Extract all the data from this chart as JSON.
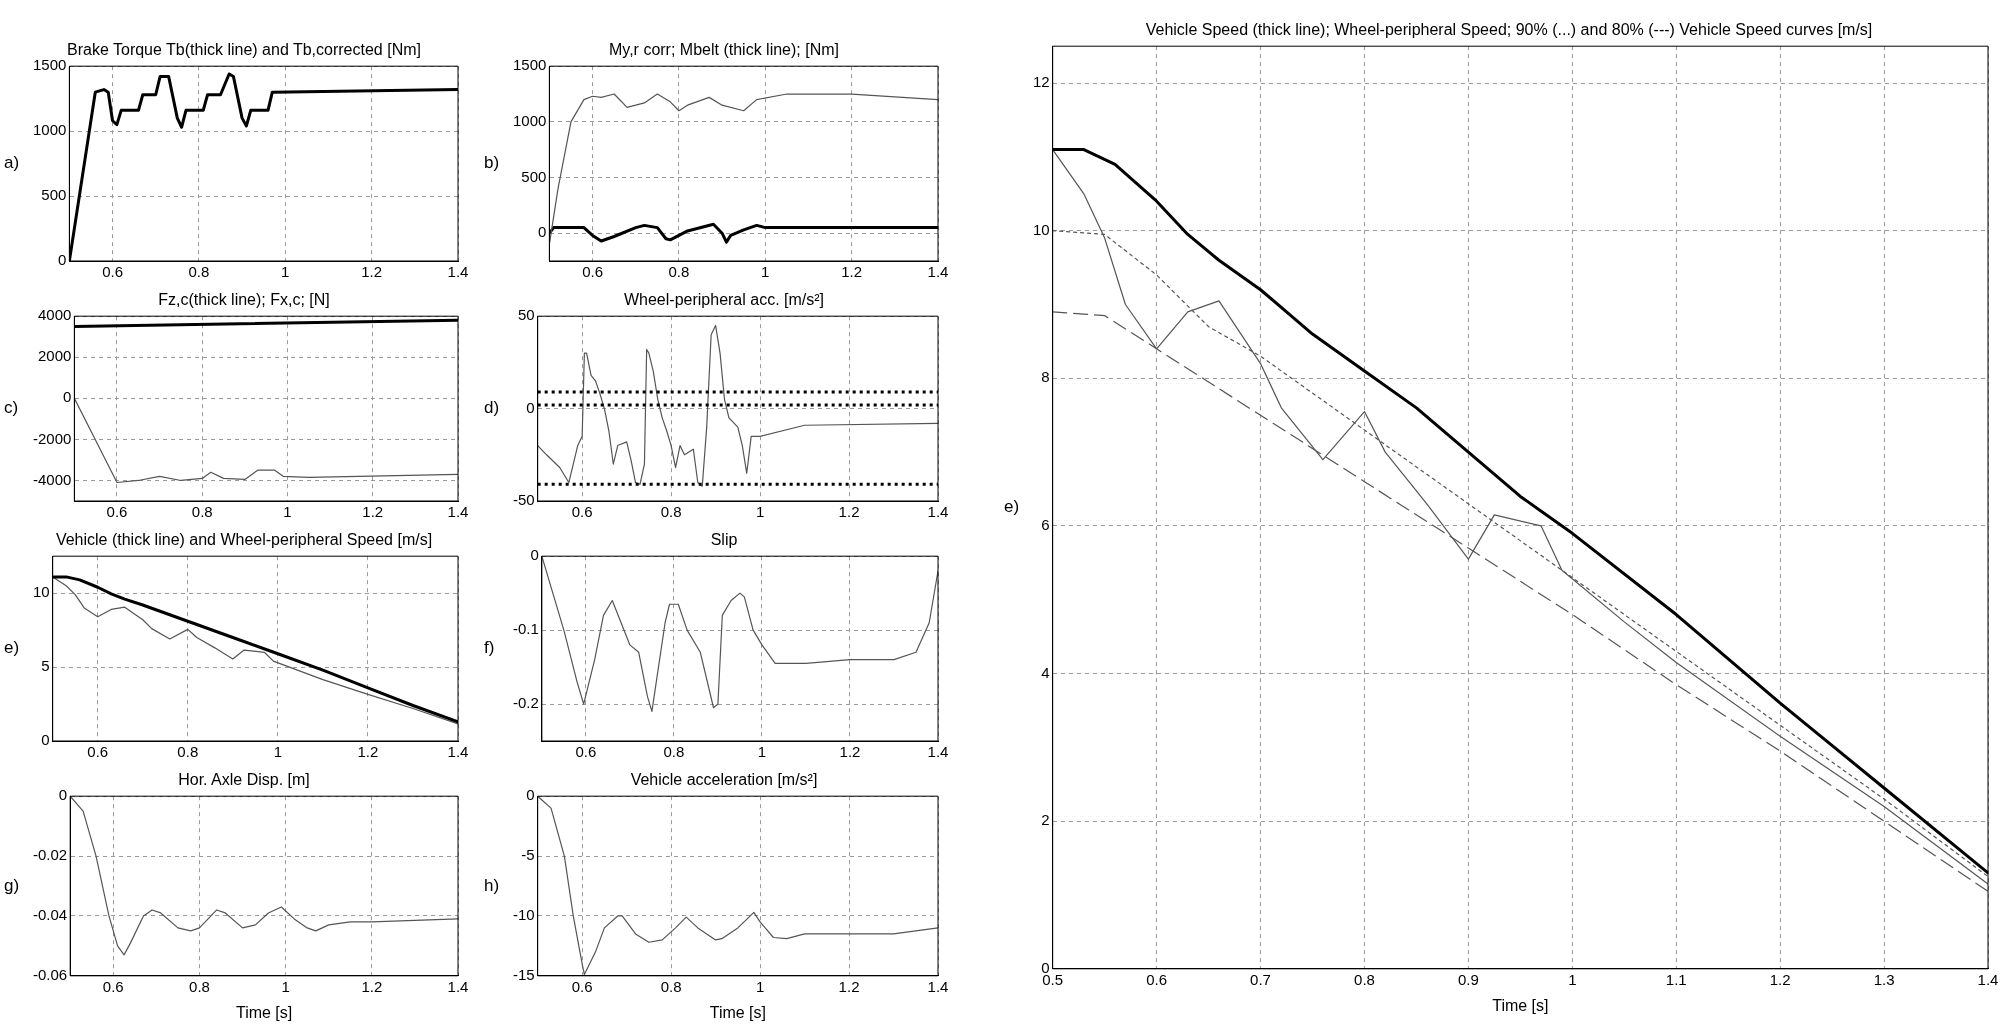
{
  "chart_data": [
    {
      "type": "line",
      "title": "Brake Torque Tb(thick line) and Tb,corrected [Nm]",
      "annotations": [
        "a)"
      ],
      "xlim": [
        0.5,
        1.4
      ],
      "xticks": [
        0.6,
        0.8,
        1,
        1.2,
        1.4
      ],
      "ylim": [
        0,
        1500
      ],
      "yticks": [
        0,
        500,
        1000,
        1500
      ],
      "grid": true,
      "marker": "none",
      "series": [
        {
          "color": "#000000",
          "x": [
            0.5,
            0.56,
            0.58,
            0.59,
            0.6,
            0.61,
            0.62,
            0.66,
            0.67,
            0.7,
            0.71,
            0.73,
            0.75,
            0.76,
            0.77,
            0.81,
            0.82,
            0.85,
            0.87,
            0.88,
            0.9,
            0.91,
            0.92,
            0.96,
            0.97,
            1.4
          ],
          "values": [
            0,
            1300,
            1320,
            1300,
            1080,
            1050,
            1160,
            1160,
            1280,
            1280,
            1420,
            1420,
            1100,
            1030,
            1160,
            1160,
            1280,
            1280,
            1440,
            1420,
            1100,
            1040,
            1160,
            1160,
            1300,
            1320
          ]
        }
      ]
    },
    {
      "type": "line",
      "title": "Fz,c(thick line); Fx,c; [N]",
      "annotations": [
        "c)"
      ],
      "xlim": [
        0.5,
        1.4
      ],
      "xticks": [
        0.6,
        0.8,
        1,
        1.2,
        1.4
      ],
      "ylim": [
        -5000,
        4000
      ],
      "yticks": [
        -4000,
        -2000,
        0,
        2000,
        4000
      ],
      "grid": true,
      "marker": "none",
      "series": [
        {
          "color": "#000000",
          "x": [
            0.5,
            1.4
          ],
          "values": [
            3500,
            3800
          ]
        },
        {
          "color": "#555555",
          "x": [
            0.5,
            0.6,
            0.65,
            0.7,
            0.75,
            0.8,
            0.82,
            0.85,
            0.9,
            0.93,
            0.97,
            0.99,
            1.05,
            1.4
          ],
          "values": [
            0,
            -4100,
            -4000,
            -3800,
            -4000,
            -3900,
            -3600,
            -3900,
            -3950,
            -3500,
            -3500,
            -3800,
            -3850,
            -3700
          ]
        }
      ]
    },
    {
      "type": "line",
      "title": "Vehicle (thick line) and Wheel-peripheral Speed [m/s]",
      "annotations": [
        "e)"
      ],
      "xlim": [
        0.5,
        1.4
      ],
      "xticks": [
        0.6,
        0.8,
        1,
        1.2,
        1.4
      ],
      "ylim": [
        0,
        12.5
      ],
      "yticks": [
        0,
        5,
        10
      ],
      "grid": true,
      "marker": "none",
      "series": [
        {
          "color": "#000000",
          "x": [
            0.5,
            0.53,
            0.56,
            0.6,
            0.63,
            0.66,
            0.7,
            0.8,
            0.9,
            1.0,
            1.1,
            1.2,
            1.3,
            1.4
          ],
          "values": [
            11.1,
            11.1,
            10.9,
            10.4,
            9.95,
            9.6,
            9.2,
            8.1,
            7.0,
            5.9,
            4.8,
            3.6,
            2.4,
            1.3
          ]
        },
        {
          "color": "#555555",
          "x": [
            0.5,
            0.53,
            0.55,
            0.57,
            0.6,
            0.63,
            0.66,
            0.7,
            0.72,
            0.76,
            0.8,
            0.82,
            0.86,
            0.9,
            0.925,
            0.97,
            0.99,
            1.1,
            1.2,
            1.3,
            1.4
          ],
          "values": [
            11.1,
            10.5,
            9.9,
            9.0,
            8.4,
            8.9,
            9.05,
            8.2,
            7.6,
            6.9,
            7.55,
            7.0,
            6.3,
            5.55,
            6.15,
            6.0,
            5.4,
            4.15,
            3.15,
            2.2,
            1.15
          ]
        }
      ]
    },
    {
      "type": "line",
      "title": "Hor. Axle Disp. [m]",
      "xlabel": "Time [s]",
      "annotations": [
        "g)"
      ],
      "xlim": [
        0.5,
        1.4
      ],
      "xticks": [
        0.6,
        0.8,
        1,
        1.2,
        1.4
      ],
      "ylim": [
        -0.06,
        0
      ],
      "yticks": [
        -0.06,
        -0.04,
        -0.02,
        0
      ],
      "grid": true,
      "marker": "none",
      "series": [
        {
          "color": "#555555",
          "x": [
            0.5,
            0.53,
            0.56,
            0.59,
            0.61,
            0.625,
            0.64,
            0.67,
            0.69,
            0.71,
            0.75,
            0.78,
            0.8,
            0.84,
            0.86,
            0.9,
            0.93,
            0.96,
            0.99,
            1.02,
            1.05,
            1.07,
            1.1,
            1.15,
            1.2,
            1.4
          ],
          "values": [
            0,
            -0.005,
            -0.02,
            -0.04,
            -0.05,
            -0.053,
            -0.049,
            -0.04,
            -0.038,
            -0.039,
            -0.044,
            -0.045,
            -0.044,
            -0.038,
            -0.039,
            -0.044,
            -0.043,
            -0.039,
            -0.037,
            -0.041,
            -0.044,
            -0.045,
            -0.043,
            -0.042,
            -0.042,
            -0.041
          ]
        }
      ]
    },
    {
      "type": "line",
      "title": "My,r corr; Mbelt (thick line); [Nm]",
      "annotations": [
        "b)"
      ],
      "xlim": [
        0.5,
        1.4
      ],
      "xticks": [
        0.6,
        0.8,
        1,
        1.2,
        1.4
      ],
      "ylim": [
        -250,
        1500
      ],
      "yticks": [
        0,
        500,
        1000,
        1500
      ],
      "grid": true,
      "marker": "none",
      "series": [
        {
          "color": "#555555",
          "x": [
            0.5,
            0.52,
            0.55,
            0.58,
            0.6,
            0.62,
            0.65,
            0.68,
            0.72,
            0.75,
            0.78,
            0.8,
            0.82,
            0.87,
            0.9,
            0.95,
            0.98,
            1.05,
            1.2,
            1.4
          ],
          "values": [
            -100,
            400,
            1000,
            1200,
            1230,
            1220,
            1250,
            1130,
            1170,
            1250,
            1180,
            1100,
            1150,
            1220,
            1150,
            1100,
            1200,
            1250,
            1250,
            1200
          ]
        },
        {
          "color": "#000000",
          "x": [
            0.5,
            0.51,
            0.58,
            0.6,
            0.62,
            0.65,
            0.7,
            0.72,
            0.75,
            0.77,
            0.78,
            0.82,
            0.86,
            0.88,
            0.9,
            0.91,
            0.92,
            0.95,
            0.98,
            1.0,
            1.4
          ],
          "values": [
            0,
            50,
            50,
            -20,
            -70,
            -30,
            50,
            70,
            50,
            -50,
            -60,
            20,
            60,
            80,
            0,
            -80,
            -20,
            30,
            70,
            50,
            50
          ]
        }
      ]
    },
    {
      "type": "line",
      "title": "Wheel-peripheral acc. [m/s²]",
      "annotations": [
        "d)"
      ],
      "xlim": [
        0.5,
        1.4
      ],
      "xticks": [
        0.6,
        0.8,
        1,
        1.2,
        1.4
      ],
      "ylim": [
        -50,
        50
      ],
      "yticks": [
        -50,
        0,
        50
      ],
      "grid": true,
      "marker": "none",
      "ref_lines": [
        {
          "axis": "y",
          "value": 9,
          "color": "#000000",
          "line_style": "dotted"
        },
        {
          "axis": "y",
          "value": 2,
          "color": "#000000",
          "line_style": "dotted"
        },
        {
          "axis": "y",
          "value": -41,
          "color": "#000000",
          "line_style": "dotted"
        }
      ],
      "series": [
        {
          "color": "#555555",
          "x": [
            0.5,
            0.52,
            0.55,
            0.57,
            0.58,
            0.59,
            0.6,
            0.605,
            0.61,
            0.62,
            0.63,
            0.64,
            0.65,
            0.66,
            0.67,
            0.68,
            0.7,
            0.71,
            0.72,
            0.73,
            0.74,
            0.745,
            0.75,
            0.76,
            0.77,
            0.78,
            0.79,
            0.8,
            0.81,
            0.82,
            0.83,
            0.85,
            0.86,
            0.87,
            0.88,
            0.89,
            0.9,
            0.91,
            0.92,
            0.93,
            0.95,
            0.96,
            0.97,
            0.98,
            1.0,
            1.1,
            1.4
          ],
          "values": [
            -20,
            -25,
            -32,
            -40,
            -30,
            -20,
            -15,
            30,
            30,
            18,
            15,
            8,
            0,
            -12,
            -30,
            -20,
            -18,
            -28,
            -40,
            -41,
            -30,
            32,
            30,
            20,
            5,
            -5,
            -12,
            -20,
            -32,
            -20,
            -25,
            -22,
            -40,
            -42,
            -10,
            40,
            45,
            30,
            5,
            -5,
            -10,
            -20,
            -35,
            -15,
            -15,
            -9,
            -8
          ]
        }
      ]
    },
    {
      "type": "line",
      "title": "Slip",
      "annotations": [
        "f)"
      ],
      "xlim": [
        0.5,
        1.4
      ],
      "xticks": [
        0.6,
        0.8,
        1,
        1.2,
        1.4
      ],
      "ylim": [
        -0.25,
        0
      ],
      "yticks": [
        -0.2,
        -0.1,
        0
      ],
      "grid": true,
      "marker": "none",
      "series": [
        {
          "color": "#555555",
          "x": [
            0.5,
            0.53,
            0.55,
            0.58,
            0.595,
            0.62,
            0.64,
            0.66,
            0.68,
            0.7,
            0.72,
            0.74,
            0.75,
            0.76,
            0.78,
            0.79,
            0.81,
            0.83,
            0.86,
            0.88,
            0.89,
            0.9,
            0.91,
            0.93,
            0.95,
            0.96,
            0.98,
            1.0,
            1.03,
            1.1,
            1.2,
            1.3,
            1.35,
            1.38,
            1.4
          ],
          "values": [
            0,
            -0.06,
            -0.1,
            -0.17,
            -0.2,
            -0.14,
            -0.08,
            -0.06,
            -0.09,
            -0.12,
            -0.13,
            -0.19,
            -0.21,
            -0.17,
            -0.09,
            -0.065,
            -0.065,
            -0.1,
            -0.13,
            -0.18,
            -0.205,
            -0.2,
            -0.08,
            -0.06,
            -0.05,
            -0.055,
            -0.1,
            -0.12,
            -0.145,
            -0.145,
            -0.14,
            -0.14,
            -0.13,
            -0.09,
            -0.02
          ]
        }
      ]
    },
    {
      "type": "line",
      "title": "Vehicle acceleration [m/s²]",
      "xlabel": "Time [s]",
      "annotations": [
        "h)"
      ],
      "xlim": [
        0.5,
        1.4
      ],
      "xticks": [
        0.6,
        0.8,
        1,
        1.2,
        1.4
      ],
      "ylim": [
        -15,
        0
      ],
      "yticks": [
        -15,
        -10,
        -5,
        0
      ],
      "grid": true,
      "marker": "none",
      "series": [
        {
          "color": "#555555",
          "x": [
            0.5,
            0.53,
            0.56,
            0.58,
            0.6,
            0.605,
            0.63,
            0.65,
            0.68,
            0.69,
            0.72,
            0.75,
            0.78,
            0.81,
            0.834,
            0.86,
            0.9,
            0.914,
            0.95,
            0.986,
            1.0,
            1.03,
            1.06,
            1.1,
            1.2,
            1.3,
            1.4
          ],
          "values": [
            0,
            -1,
            -5,
            -10,
            -14,
            -14.9,
            -13,
            -11,
            -10,
            -10,
            -11.5,
            -12.2,
            -12,
            -11,
            -10.1,
            -11,
            -12,
            -11.9,
            -11,
            -9.7,
            -10.5,
            -11.8,
            -11.9,
            -11.5,
            -11.5,
            -11.5,
            -11
          ]
        }
      ]
    },
    {
      "type": "line",
      "title": "Vehicle Speed (thick line); Wheel-peripheral Speed; 90% (...) and 80% (---) Vehicle Speed curves [m/s]",
      "xlabel": "Time [s]",
      "annotations": [
        "e)"
      ],
      "xlim": [
        0.5,
        1.4
      ],
      "xticks": [
        0.5,
        0.6,
        0.7,
        0.8,
        0.9,
        1,
        1.1,
        1.2,
        1.3,
        1.4
      ],
      "ylim": [
        0,
        12.5
      ],
      "yticks": [
        0,
        2,
        4,
        6,
        8,
        10,
        12
      ],
      "grid": true,
      "marker": "none",
      "series": [
        {
          "color": "#000000",
          "x": [
            0.5,
            0.53,
            0.56,
            0.6,
            0.63,
            0.66,
            0.7,
            0.75,
            0.8,
            0.85,
            0.9,
            0.95,
            1.0,
            1.1,
            1.2,
            1.3,
            1.4
          ],
          "values": [
            11.1,
            11.1,
            10.9,
            10.4,
            9.95,
            9.6,
            9.2,
            8.6,
            8.1,
            7.6,
            7.0,
            6.4,
            5.9,
            4.8,
            3.6,
            2.45,
            1.3
          ]
        },
        {
          "color": "#555555",
          "x": [
            0.5,
            0.53,
            0.55,
            0.57,
            0.6,
            0.63,
            0.66,
            0.7,
            0.72,
            0.76,
            0.8,
            0.82,
            0.86,
            0.9,
            0.925,
            0.97,
            0.99,
            1.05,
            1.1,
            1.2,
            1.3,
            1.4
          ],
          "values": [
            11.1,
            10.5,
            9.9,
            9.0,
            8.4,
            8.9,
            9.05,
            8.2,
            7.6,
            6.9,
            7.55,
            7.0,
            6.3,
            5.55,
            6.15,
            6.0,
            5.4,
            4.7,
            4.15,
            3.15,
            2.2,
            1.15
          ]
        },
        {
          "color": "#555555",
          "line_style": "dotted",
          "x": [
            0.5,
            0.55,
            0.6,
            0.65,
            0.7,
            0.8,
            0.9,
            1.0,
            1.1,
            1.2,
            1.3,
            1.4
          ],
          "values": [
            10.0,
            9.95,
            9.4,
            8.7,
            8.3,
            7.3,
            6.3,
            5.3,
            4.3,
            3.3,
            2.3,
            1.25
          ]
        },
        {
          "color": "#555555",
          "line_style": "dashed",
          "x": [
            0.5,
            0.55,
            0.6,
            0.7,
            0.8,
            0.9,
            1.0,
            1.1,
            1.2,
            1.3,
            1.4
          ],
          "values": [
            8.9,
            8.85,
            8.4,
            7.5,
            6.6,
            5.7,
            4.8,
            3.85,
            2.95,
            2.0,
            1.05
          ]
        }
      ]
    }
  ]
}
